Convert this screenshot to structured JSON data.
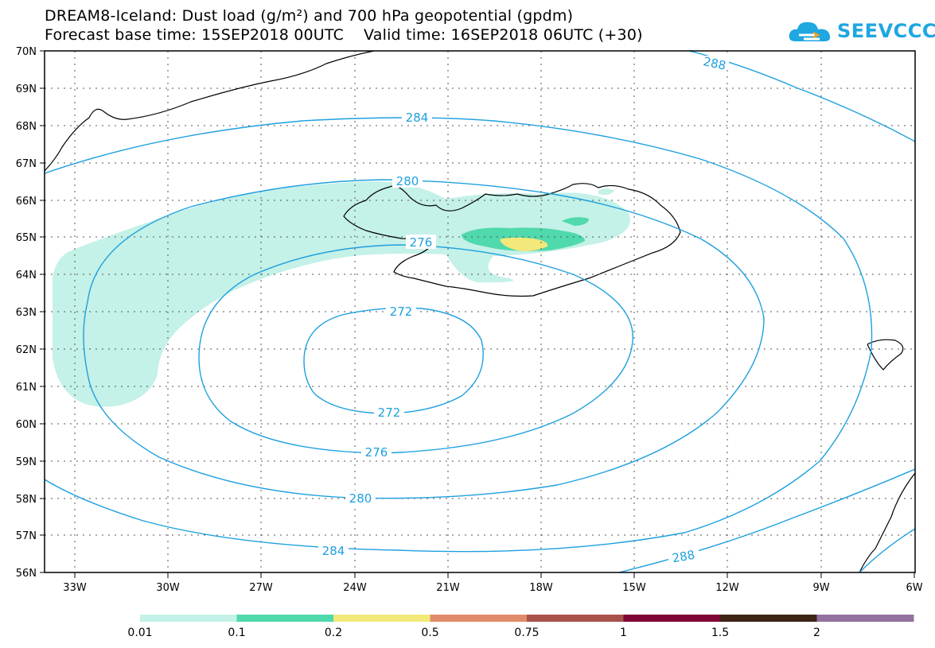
{
  "title": {
    "line1": "DREAM8-Iceland: Dust load (g/m²) and 700 hPa geopotential (gpdm)",
    "line2": "Forecast base time: 15SEP2018 00UTC    Valid time: 16SEP2018 06UTC (+30)"
  },
  "logo": {
    "text": "SEEVCCC",
    "color": "#1ea7e1"
  },
  "map": {
    "lat_labels": [
      "70N",
      "69N",
      "68N",
      "67N",
      "66N",
      "65N",
      "64N",
      "63N",
      "62N",
      "61N",
      "60N",
      "59N",
      "58N",
      "57N",
      "56N"
    ],
    "lon_labels": [
      "33W",
      "30W",
      "27W",
      "24W",
      "21W",
      "18W",
      "15W",
      "12W",
      "9W",
      "6W"
    ],
    "contour_color": "#1ea0df",
    "contour_labels": [
      "288",
      "284",
      "280",
      "276",
      "272",
      "272",
      "276",
      "280",
      "284",
      "288"
    ]
  },
  "colorbar": {
    "colors": [
      "#c4f1e8",
      "#4fd9ac",
      "#f3e87a",
      "#e08c6a",
      "#a8524a",
      "#800638",
      "#3d2414",
      "#93709e"
    ],
    "tick_labels": [
      "0.01",
      "0.1",
      "0.2",
      "0.5",
      "0.75",
      "1",
      "1.5",
      "2"
    ]
  }
}
